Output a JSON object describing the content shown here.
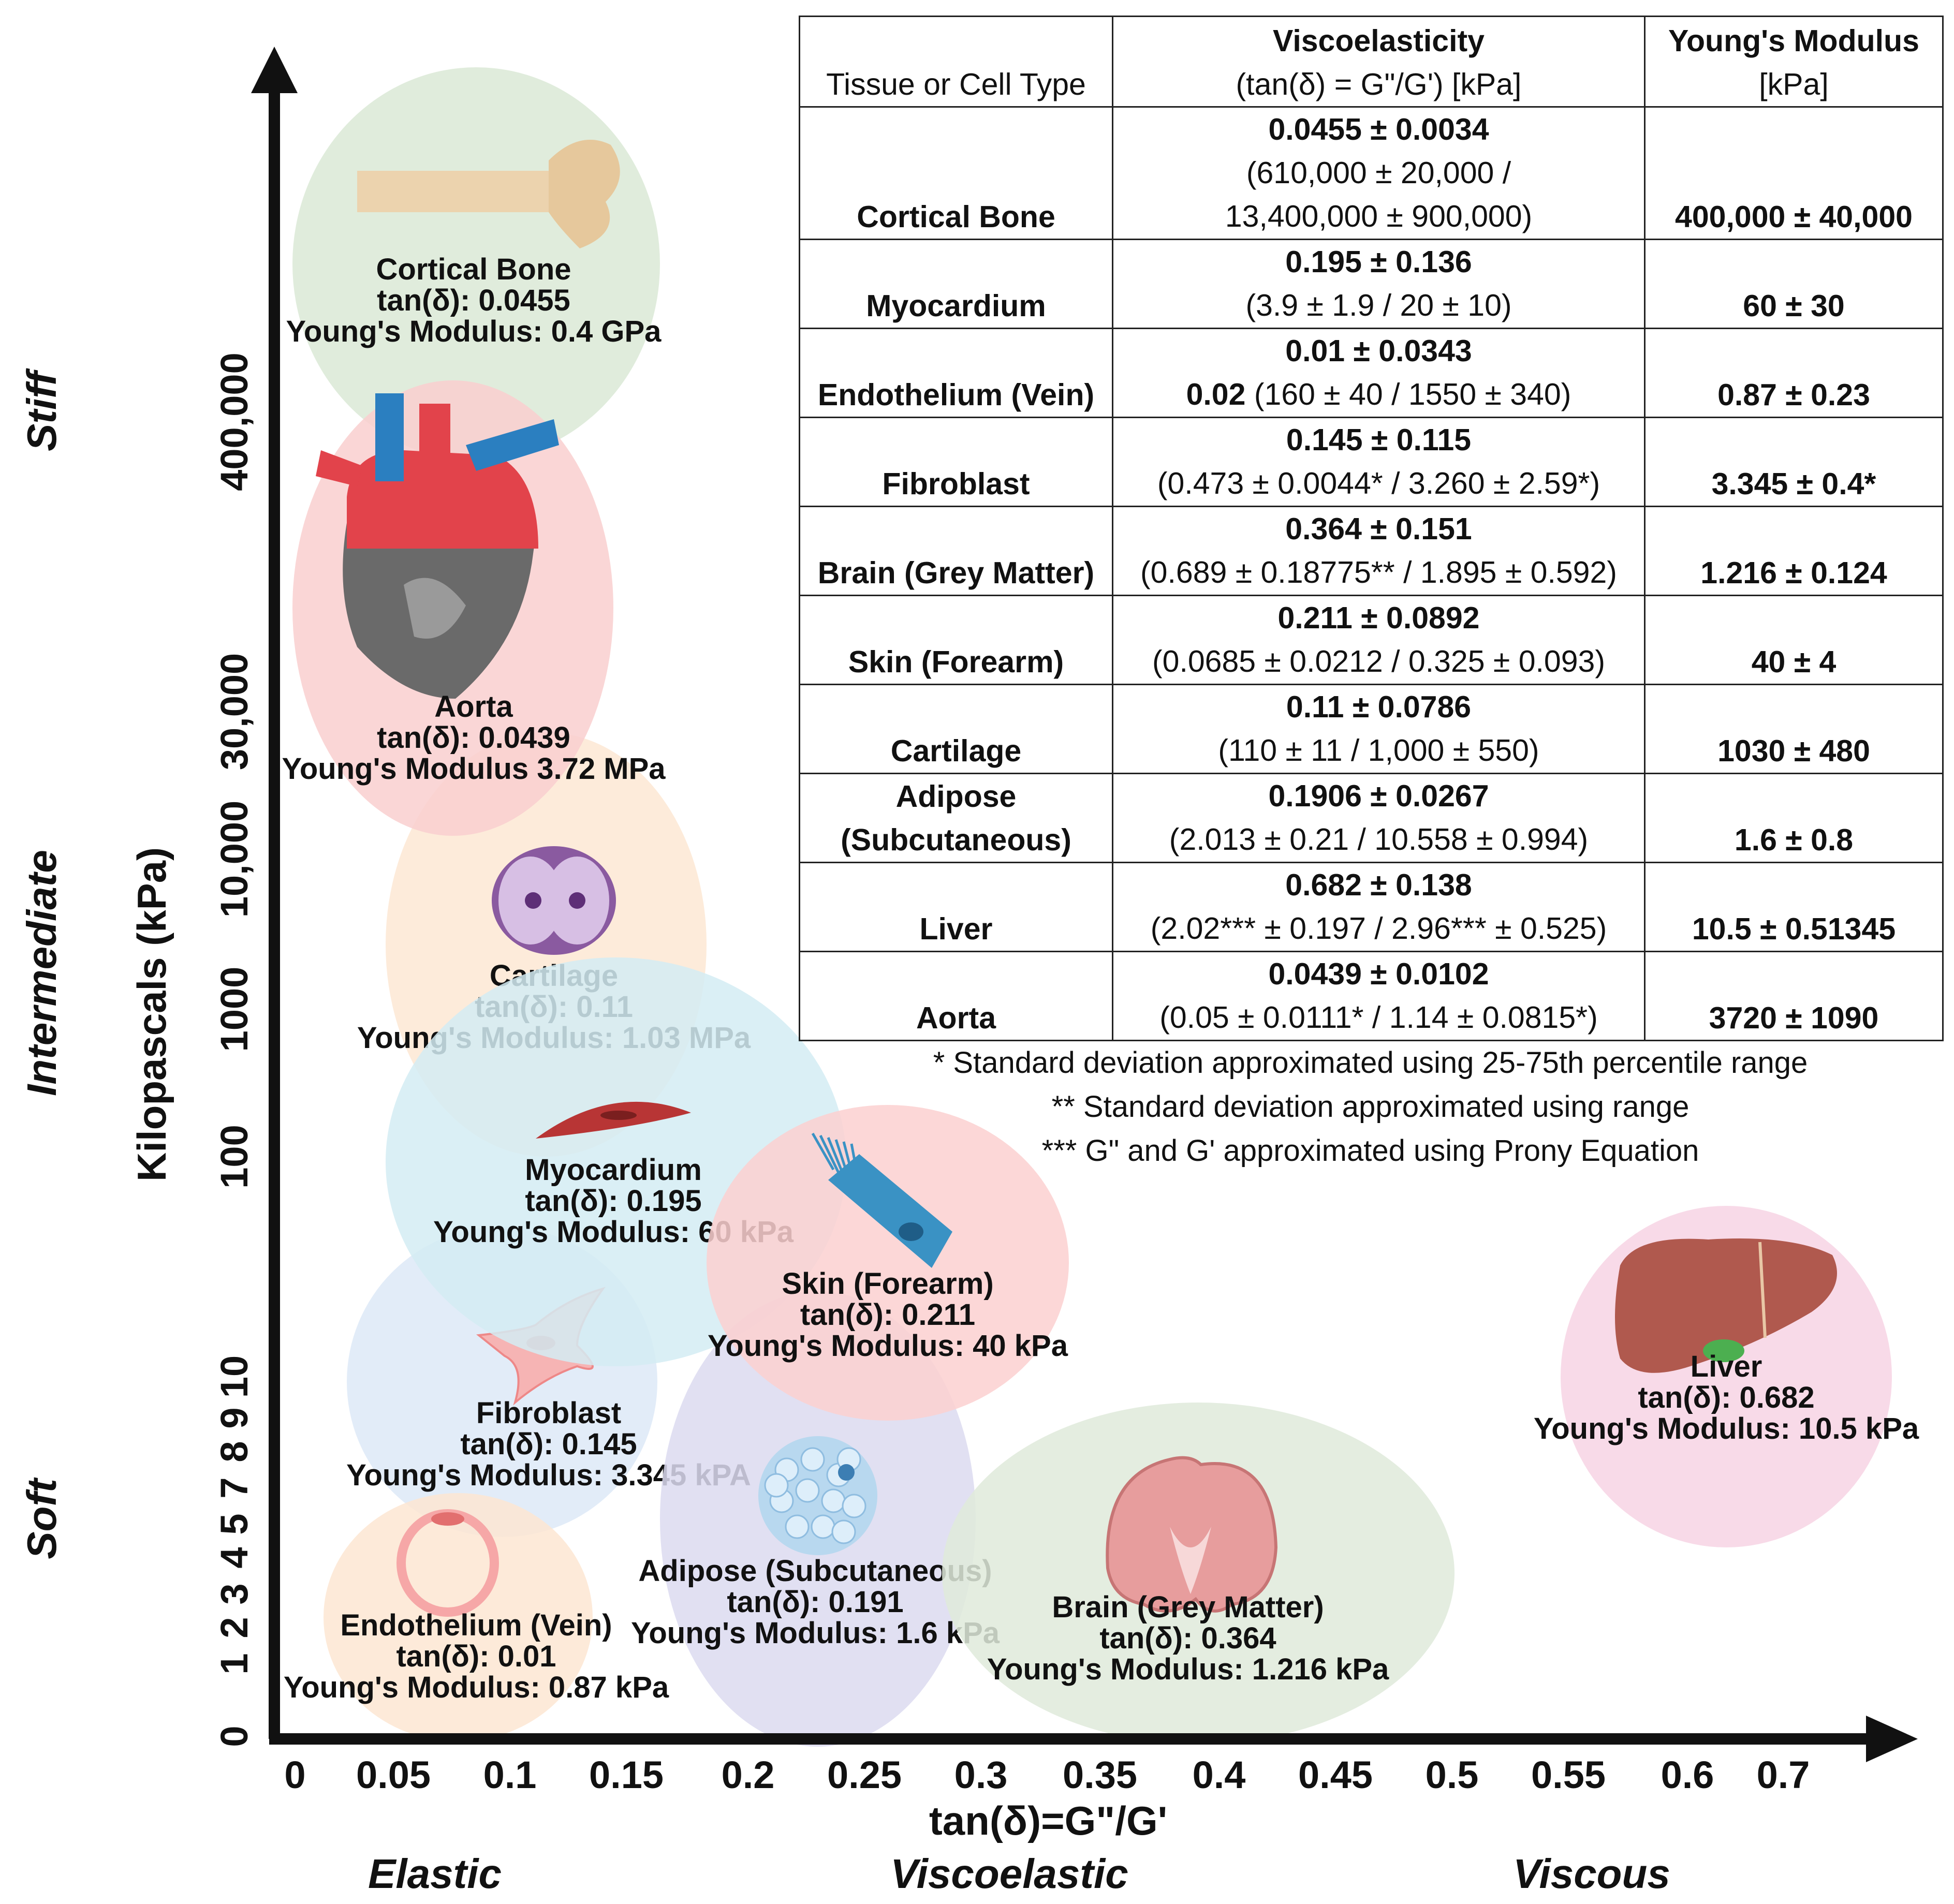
{
  "chart_data": {
    "type": "scatter",
    "title": "",
    "xlabel": "tan(δ)=G\"/G'",
    "ylabel": "Kilopascals (kPa)",
    "x_ticks": [
      "0",
      "0.05",
      "0.1",
      "0.15",
      "0.2",
      "0.25",
      "0.3",
      "0.35",
      "0.4",
      "0.45",
      "0.5",
      "0.55",
      "0.6",
      "0.7"
    ],
    "y_ticks": [
      "0",
      "1",
      "2",
      "3",
      "4",
      "5",
      "7",
      "8",
      "9",
      "10",
      "100",
      "1000",
      "10,000",
      "30,000",
      "400,000"
    ],
    "y_scale": "categorical (non-linear)",
    "x_regions": [
      "Elastic",
      "Viscoelastic",
      "Viscous"
    ],
    "y_regions": [
      "Soft",
      "Intermediate",
      "Stiff"
    ],
    "points": [
      {
        "name": "Cortical Bone",
        "tan_delta": 0.0455,
        "modulus_kpa": 400000,
        "label": "Cortical Bone",
        "line1": "tan(δ): 0.0455",
        "line2": "Young's Modulus: 0.4 GPa",
        "color": "#dbe9d6",
        "icon": "bone-icon"
      },
      {
        "name": "Aorta",
        "tan_delta": 0.0439,
        "modulus_kpa": 3720,
        "label": "Aorta",
        "line1": "tan(δ): 0.0439",
        "line2": "Young's Modulus 3.72 MPa",
        "color": "#f9cfcf",
        "icon": "heart-icon"
      },
      {
        "name": "Cartilage",
        "tan_delta": 0.11,
        "modulus_kpa": 1030,
        "label": "Cartilage",
        "line1": "tan(δ): 0.11",
        "line2": "Young's Modulus: 1.03 MPa",
        "color": "#fde7d3",
        "icon": "chondrocyte-icon"
      },
      {
        "name": "Myocardium",
        "tan_delta": 0.195,
        "modulus_kpa": 60,
        "label": "Myocardium",
        "line1": "tan(δ): 0.195",
        "line2": "Young's Modulus: 60 kPa",
        "color": "#d4ecf3",
        "icon": "cardiomyocyte-icon"
      },
      {
        "name": "Skin (Forearm)",
        "tan_delta": 0.211,
        "modulus_kpa": 40,
        "label": "Skin (Forearm)",
        "line1": "tan(δ): 0.211",
        "line2": "Young's Modulus: 40 kPa",
        "color": "#fbd0d0",
        "icon": "skin-cell-icon"
      },
      {
        "name": "Fibroblast",
        "tan_delta": 0.145,
        "modulus_kpa": 3.345,
        "label": "Fibroblast",
        "line1": "tan(δ): 0.145",
        "line2": "Young's Modulus: 3.345 kPA",
        "color": "#dde9f7",
        "icon": "fibroblast-icon"
      },
      {
        "name": "Adipose (Subcutaneous)",
        "tan_delta": 0.191,
        "modulus_kpa": 1.6,
        "label": "Adipose (Subcutaneous)",
        "line1": "tan(δ): 0.191",
        "line2": "Young's Modulus: 1.6 kPa",
        "color": "#dcdaf0",
        "icon": "adipocyte-icon"
      },
      {
        "name": "Endothelium (Vein)",
        "tan_delta": 0.01,
        "modulus_kpa": 0.87,
        "label": "Endothelium (Vein)",
        "line1": "tan(δ): 0.01",
        "line2": "Young's Modulus: 0.87 kPa",
        "color": "#fde6d2",
        "icon": "vein-icon"
      },
      {
        "name": "Brain (Grey Matter)",
        "tan_delta": 0.364,
        "modulus_kpa": 1.216,
        "label": "Brain (Grey Matter)",
        "line1": "tan(δ): 0.364",
        "line2": "Young's Modulus: 1.216 kPa",
        "color": "#dfeadb",
        "icon": "brain-icon"
      },
      {
        "name": "Liver",
        "tan_delta": 0.682,
        "modulus_kpa": 10.5,
        "label": "Liver",
        "line1": "tan(δ): 0.682",
        "line2": "Young's Modulus: 10.5 kPa",
        "color": "#f7d3e4",
        "icon": "liver-icon"
      }
    ]
  },
  "table": {
    "headers": {
      "col1": "Tissue or Cell Type",
      "col2_l1": "Viscoelasticity",
      "col2_l2": "(tan(δ) = G\"/G') [kPa]",
      "col3_l1": "Young's Modulus",
      "col3_l2": "[kPa]"
    },
    "rows": [
      {
        "tissue": "Cortical Bone",
        "v1": "0.0455 ± 0.0034",
        "v2": "(610,000  ± 20,000 /",
        "v3": "13,400,000 ± 900,000)",
        "ym": "400,000 ± 40,000"
      },
      {
        "tissue": "Myocardium",
        "v1": "0.195 ± 0.136",
        "v2": "(3.9 ± 1.9 / 20 ± 10)",
        "ym": "60 ± 30"
      },
      {
        "tissue": "Endothelium (Vein)",
        "v1": "0.01 ± 0.0343",
        "v2b": "0.02",
        "v2": " (160 ± 40 / 1550 ± 340)",
        "ym": "0.87 ± 0.23"
      },
      {
        "tissue": "Fibroblast",
        "v1": "0.145 ± 0.115",
        "v2": "(0.473 ± 0.0044* / 3.260 ± 2.59*)",
        "ym": "3.345 ± 0.4*"
      },
      {
        "tissue": "Brain (Grey Matter)",
        "v1": "0.364 ± 0.151",
        "v2": "(0.689 ± 0.18775** / 1.895 ± 0.592)",
        "ym": "1.216 ± 0.124"
      },
      {
        "tissue": "Skin (Forearm)",
        "v1": "0.211 ± 0.0892",
        "v2": "(0.0685 ± 0.0212 / 0.325 ± 0.093)",
        "ym": "40 ± 4"
      },
      {
        "tissue": "Cartilage",
        "v1": "0.11 ± 0.0786",
        "v2": "(110 ± 11 / 1,000 ± 550)",
        "ym": "1030 ± 480"
      },
      {
        "tissue_l1": "Adipose",
        "tissue_l2": "(Subcutaneous)",
        "v1": "0.1906 ± 0.0267",
        "v2": "(2.013 ± 0.21 / 10.558 ± 0.994)",
        "ym": "1.6 ± 0.8"
      },
      {
        "tissue": "Liver",
        "v1": "0.682 ± 0.138",
        "v2": "(2.02*** ± 0.197 / 2.96*** ± 0.525)",
        "ym": "10.5 ± 0.51345"
      },
      {
        "tissue": "Aorta",
        "v1": "0.0439 ± 0.0102",
        "v2": "(0.05 ± 0.0111* / 1.14 ± 0.0815*)",
        "ym": "3720 ± 1090"
      }
    ]
  },
  "footnotes": [
    "* Standard deviation approximated using 25-75th percentile range",
    "** Standard deviation approximated using range",
    "*** G\" and G' approximated using Prony Equation"
  ]
}
